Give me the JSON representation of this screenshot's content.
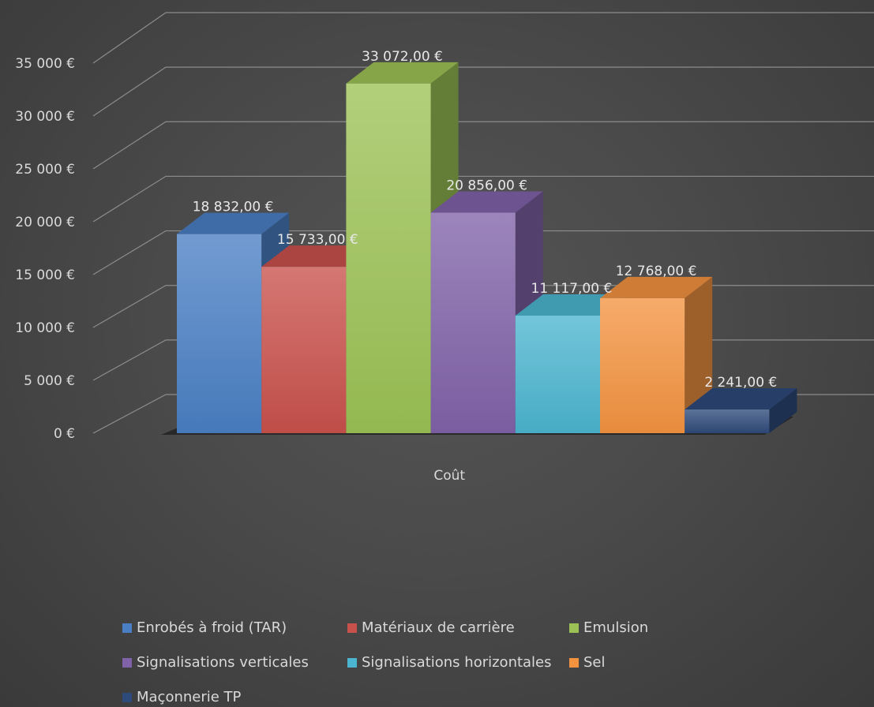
{
  "chart_data": {
    "type": "bar",
    "subtype": "3d-clustered-column",
    "categories": [
      "Coût"
    ],
    "series": [
      {
        "name": "Enrobés à froid (TAR)",
        "values": [
          18832
        ],
        "label": "18 832,00 €",
        "color": "#4a7fc4"
      },
      {
        "name": "Matériaux de carrière",
        "values": [
          15733
        ],
        "label": "15 733,00 €",
        "color": "#c9514c"
      },
      {
        "name": "Emulsion",
        "values": [
          33072
        ],
        "label": "33 072,00 €",
        "color": "#9cc255"
      },
      {
        "name": "Signalisations verticales",
        "values": [
          20856
        ],
        "label": "20 856,00 €",
        "color": "#8062a8"
      },
      {
        "name": "Signalisations horizontales",
        "values": [
          11117
        ],
        "label": "11 117,00 €",
        "color": "#4bb5cf"
      },
      {
        "name": "Sel",
        "values": [
          12768
        ],
        "label": "12 768,00 €",
        "color": "#f39340"
      },
      {
        "name": "Maçonnerie TP",
        "values": [
          2241
        ],
        "label": "2 241,00 €",
        "color": "#2e4a7a"
      }
    ],
    "ylim": [
      0,
      35000
    ],
    "yticks": [
      "0 €",
      "5 000 €",
      "10 000 €",
      "15 000 €",
      "20 000 €",
      "25 000 €",
      "30 000 €",
      "35 000 €"
    ],
    "grid": true,
    "legend_position": "bottom"
  }
}
